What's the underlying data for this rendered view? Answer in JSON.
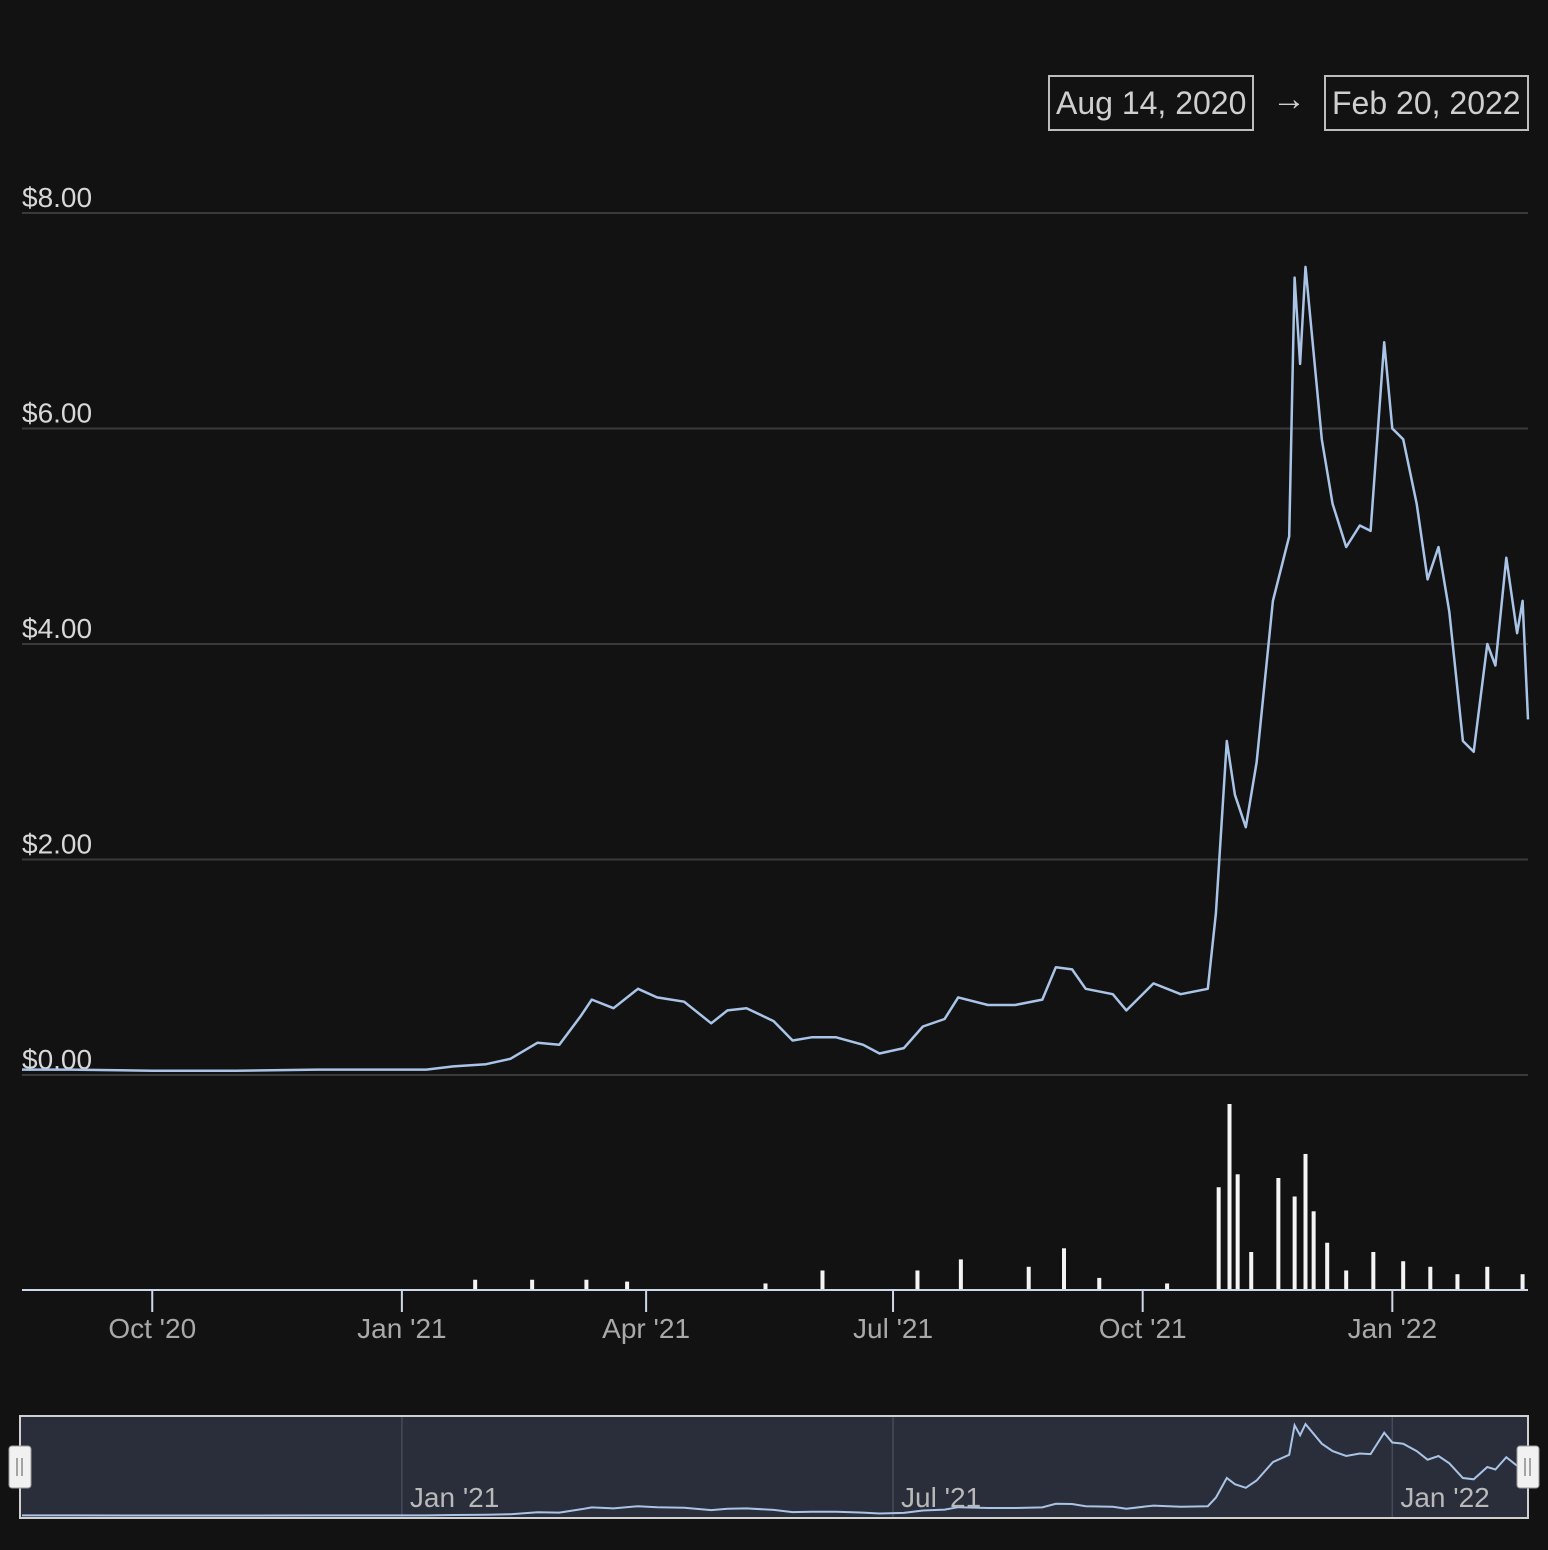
{
  "range_selector": {
    "from": "Aug 14, 2020",
    "arrow": "→",
    "to": "Feb 20, 2022"
  },
  "colors": {
    "background": "#121213",
    "line": "#a9c4e6",
    "volume": "#f4f4f4",
    "grid": "#3a3a3c",
    "navigator_bg": "#2a2d3a"
  },
  "chart_data": {
    "type": "line",
    "ylim": [
      0,
      8
    ],
    "yticks": [
      {
        "value": 0,
        "label": "$0.00"
      },
      {
        "value": 2,
        "label": "$2.00"
      },
      {
        "value": 4,
        "label": "$4.00"
      },
      {
        "value": 6,
        "label": "$6.00"
      },
      {
        "value": 8,
        "label": "$8.00"
      }
    ],
    "xrange": [
      "2020-08-14",
      "2022-02-20"
    ],
    "xticks": [
      {
        "date": "2020-10-01",
        "label": "Oct '20"
      },
      {
        "date": "2021-01-01",
        "label": "Jan '21"
      },
      {
        "date": "2021-04-01",
        "label": "Apr '21"
      },
      {
        "date": "2021-07-01",
        "label": "Jul '21"
      },
      {
        "date": "2021-10-01",
        "label": "Oct '21"
      },
      {
        "date": "2022-01-01",
        "label": "Jan '22"
      }
    ],
    "navigator_ticks": [
      {
        "date": "2021-01-01",
        "label": "Jan '21"
      },
      {
        "date": "2021-07-01",
        "label": "Jul '21"
      },
      {
        "date": "2022-01-01",
        "label": "Jan '22"
      }
    ],
    "price": [
      [
        "2020-08-14",
        0.05
      ],
      [
        "2020-09-01",
        0.05
      ],
      [
        "2020-10-01",
        0.04
      ],
      [
        "2020-11-01",
        0.04
      ],
      [
        "2020-12-01",
        0.05
      ],
      [
        "2020-12-25",
        0.05
      ],
      [
        "2021-01-10",
        0.05
      ],
      [
        "2021-01-20",
        0.08
      ],
      [
        "2021-02-01",
        0.1
      ],
      [
        "2021-02-10",
        0.15
      ],
      [
        "2021-02-20",
        0.3
      ],
      [
        "2021-02-28",
        0.28
      ],
      [
        "2021-03-08",
        0.55
      ],
      [
        "2021-03-12",
        0.7
      ],
      [
        "2021-03-20",
        0.62
      ],
      [
        "2021-03-29",
        0.8
      ],
      [
        "2021-04-05",
        0.72
      ],
      [
        "2021-04-15",
        0.68
      ],
      [
        "2021-04-25",
        0.48
      ],
      [
        "2021-05-01",
        0.6
      ],
      [
        "2021-05-08",
        0.62
      ],
      [
        "2021-05-18",
        0.5
      ],
      [
        "2021-05-25",
        0.32
      ],
      [
        "2021-06-01",
        0.35
      ],
      [
        "2021-06-10",
        0.35
      ],
      [
        "2021-06-20",
        0.28
      ],
      [
        "2021-06-26",
        0.2
      ],
      [
        "2021-07-05",
        0.25
      ],
      [
        "2021-07-12",
        0.45
      ],
      [
        "2021-07-20",
        0.52
      ],
      [
        "2021-07-25",
        0.72
      ],
      [
        "2021-08-05",
        0.65
      ],
      [
        "2021-08-15",
        0.65
      ],
      [
        "2021-08-25",
        0.7
      ],
      [
        "2021-08-30",
        1.0
      ],
      [
        "2021-09-05",
        0.98
      ],
      [
        "2021-09-10",
        0.8
      ],
      [
        "2021-09-20",
        0.75
      ],
      [
        "2021-09-25",
        0.6
      ],
      [
        "2021-10-05",
        0.85
      ],
      [
        "2021-10-15",
        0.75
      ],
      [
        "2021-10-25",
        0.8
      ],
      [
        "2021-10-28",
        1.5
      ],
      [
        "2021-11-01",
        3.1
      ],
      [
        "2021-11-04",
        2.6
      ],
      [
        "2021-11-08",
        2.3
      ],
      [
        "2021-11-12",
        2.9
      ],
      [
        "2021-11-18",
        4.4
      ],
      [
        "2021-11-24",
        5.0
      ],
      [
        "2021-11-26",
        7.4
      ],
      [
        "2021-11-28",
        6.6
      ],
      [
        "2021-11-30",
        7.5
      ],
      [
        "2021-12-06",
        5.9
      ],
      [
        "2021-12-10",
        5.3
      ],
      [
        "2021-12-15",
        4.9
      ],
      [
        "2021-12-20",
        5.1
      ],
      [
        "2021-12-24",
        5.05
      ],
      [
        "2021-12-29",
        6.8
      ],
      [
        "2022-01-01",
        6.0
      ],
      [
        "2022-01-05",
        5.9
      ],
      [
        "2022-01-10",
        5.3
      ],
      [
        "2022-01-14",
        4.6
      ],
      [
        "2022-01-18",
        4.9
      ],
      [
        "2022-01-22",
        4.3
      ],
      [
        "2022-01-27",
        3.1
      ],
      [
        "2022-01-31",
        3.0
      ],
      [
        "2022-02-05",
        4.0
      ],
      [
        "2022-02-08",
        3.8
      ],
      [
        "2022-02-12",
        4.8
      ],
      [
        "2022-02-16",
        4.1
      ],
      [
        "2022-02-18",
        4.4
      ],
      [
        "2022-02-20",
        3.3
      ]
    ],
    "volume_relative": [
      [
        "2021-01-28",
        0.05
      ],
      [
        "2021-02-18",
        0.05
      ],
      [
        "2021-03-10",
        0.05
      ],
      [
        "2021-03-25",
        0.04
      ],
      [
        "2021-05-15",
        0.03
      ],
      [
        "2021-06-05",
        0.1
      ],
      [
        "2021-07-10",
        0.1
      ],
      [
        "2021-07-26",
        0.16
      ],
      [
        "2021-08-20",
        0.12
      ],
      [
        "2021-09-02",
        0.22
      ],
      [
        "2021-09-15",
        0.06
      ],
      [
        "2021-10-10",
        0.03
      ],
      [
        "2021-10-29",
        0.55
      ],
      [
        "2021-11-02",
        1.0
      ],
      [
        "2021-11-05",
        0.62
      ],
      [
        "2021-11-10",
        0.2
      ],
      [
        "2021-11-20",
        0.6
      ],
      [
        "2021-11-26",
        0.5
      ],
      [
        "2021-11-30",
        0.73
      ],
      [
        "2021-12-03",
        0.42
      ],
      [
        "2021-12-08",
        0.25
      ],
      [
        "2021-12-15",
        0.1
      ],
      [
        "2021-12-25",
        0.2
      ],
      [
        "2022-01-05",
        0.15
      ],
      [
        "2022-01-15",
        0.12
      ],
      [
        "2022-01-25",
        0.08
      ],
      [
        "2022-02-05",
        0.12
      ],
      [
        "2022-02-18",
        0.08
      ]
    ]
  }
}
